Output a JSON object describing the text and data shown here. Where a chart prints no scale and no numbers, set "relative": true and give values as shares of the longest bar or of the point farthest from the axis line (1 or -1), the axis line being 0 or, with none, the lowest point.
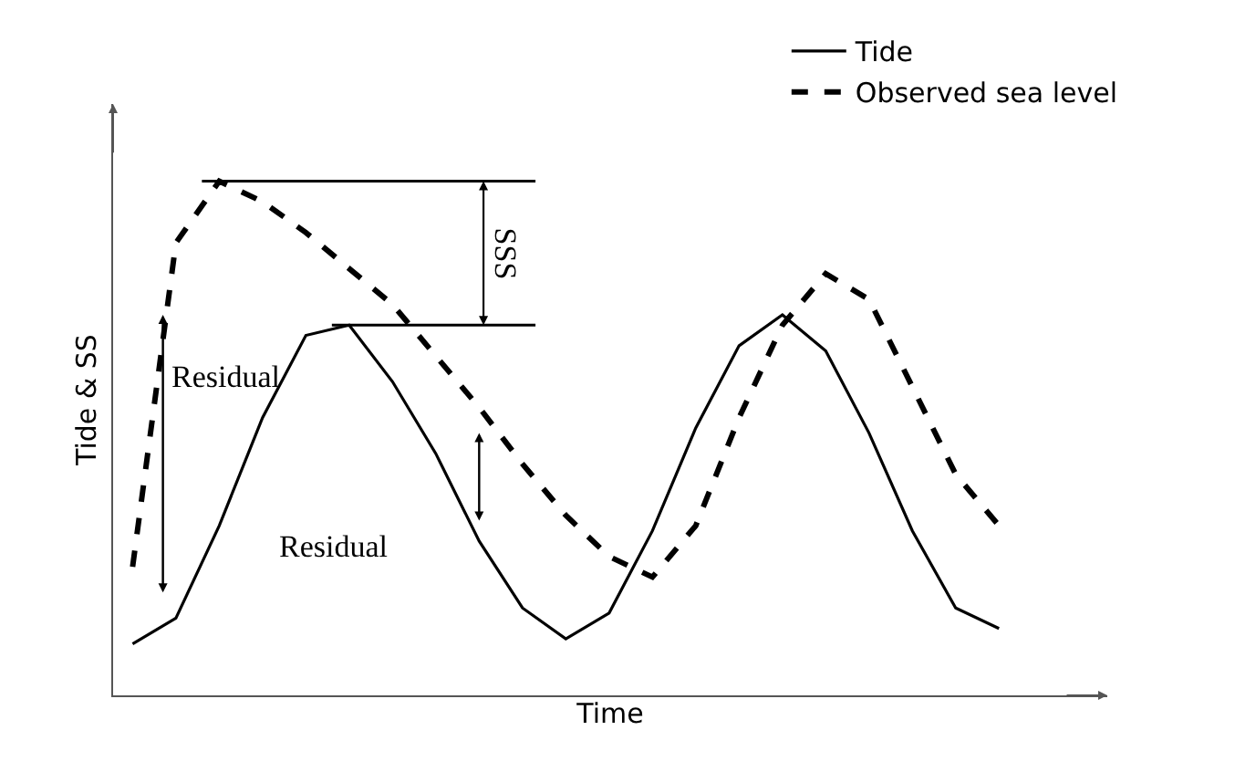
{
  "chart_data": {
    "type": "line",
    "relative": true,
    "xlabel": "Time",
    "ylabel": "Tide & SS",
    "legend": "top right",
    "grid": false,
    "marker": "none",
    "categories": [
      null,
      null,
      null,
      null,
      null,
      null,
      null,
      null,
      null,
      null,
      null,
      null,
      null,
      null,
      null,
      null,
      null,
      null,
      null,
      null,
      null
    ],
    "series": [
      {
        "name": "Tide",
        "color": "#000000",
        "line_style": "solid",
        "values": [
          0.1,
          0.15,
          0.33,
          0.54,
          0.7,
          0.72,
          0.61,
          0.47,
          0.3,
          0.17,
          0.11,
          0.16,
          0.32,
          0.52,
          0.68,
          0.74,
          0.67,
          0.51,
          0.32,
          0.17,
          0.13
        ]
      },
      {
        "name": "Observed sea level",
        "color": "#000000",
        "line_style": "dashed",
        "values": [
          0.25,
          0.88,
          1.0,
          0.96,
          0.9,
          0.83,
          0.76,
          0.66,
          0.56,
          0.45,
          0.35,
          0.27,
          0.23,
          0.33,
          0.54,
          0.72,
          0.82,
          0.77,
          0.6,
          0.43,
          0.33
        ]
      }
    ],
    "ref_lines": [
      {
        "axis": "y",
        "value": 1.0,
        "label": null,
        "color": "#000000"
      },
      {
        "axis": "y",
        "value": 0.72,
        "label": null,
        "color": "#000000"
      }
    ],
    "annotations": [
      "SSS",
      "Residual",
      "Residual"
    ]
  }
}
